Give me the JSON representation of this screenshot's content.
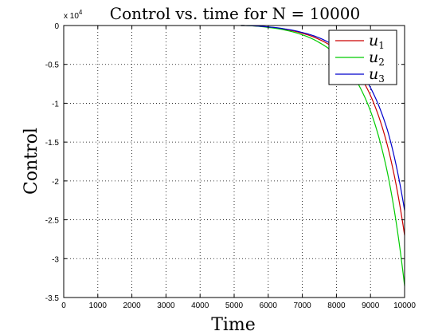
{
  "chart_data": {
    "type": "line",
    "title": "Control vs. time for N = 10000",
    "xlabel": "Time",
    "ylabel": "Control",
    "y_exponent_label": "x 10",
    "y_exponent_power": "4",
    "xlim": [
      0,
      10000
    ],
    "ylim": [
      -35000,
      0
    ],
    "x_ticks": [
      0,
      1000,
      2000,
      3000,
      4000,
      5000,
      6000,
      7000,
      8000,
      9000,
      10000
    ],
    "x_tick_labels": [
      "0",
      "1000",
      "2000",
      "3000",
      "4000",
      "5000",
      "6000",
      "7000",
      "8000",
      "9000",
      "10000"
    ],
    "y_ticks": [
      0,
      -5000,
      -10000,
      -15000,
      -20000,
      -25000,
      -30000,
      -35000
    ],
    "y_tick_labels": [
      "0",
      "-0.5",
      "-1",
      "-1.5",
      "-2",
      "-2.5",
      "-3",
      "-3.5"
    ],
    "grid": true,
    "legend_position": "top-right",
    "series": [
      {
        "name": "u",
        "subscript": "1",
        "color": "#cc0000",
        "x": [
          5200,
          6000,
          6500,
          7000,
          7500,
          8000,
          8500,
          9000,
          9500,
          10000
        ],
        "values": [
          0,
          -200,
          -500,
          -1000,
          -1800,
          -3100,
          -5300,
          -9000,
          -15500,
          -27000
        ]
      },
      {
        "name": "u",
        "subscript": "2",
        "color": "#00cc00",
        "x": [
          5200,
          6000,
          6500,
          7000,
          7500,
          8000,
          8500,
          9000,
          9500,
          10000
        ],
        "values": [
          0,
          -250,
          -600,
          -1200,
          -2200,
          -3800,
          -6500,
          -11000,
          -19000,
          -33500
        ]
      },
      {
        "name": "u",
        "subscript": "3",
        "color": "#0000cc",
        "x": [
          5200,
          6000,
          6500,
          7000,
          7500,
          8000,
          8500,
          9000,
          9500,
          10000
        ],
        "values": [
          0,
          -180,
          -450,
          -900,
          -1600,
          -2800,
          -4800,
          -8000,
          -13500,
          -23800
        ]
      }
    ]
  }
}
